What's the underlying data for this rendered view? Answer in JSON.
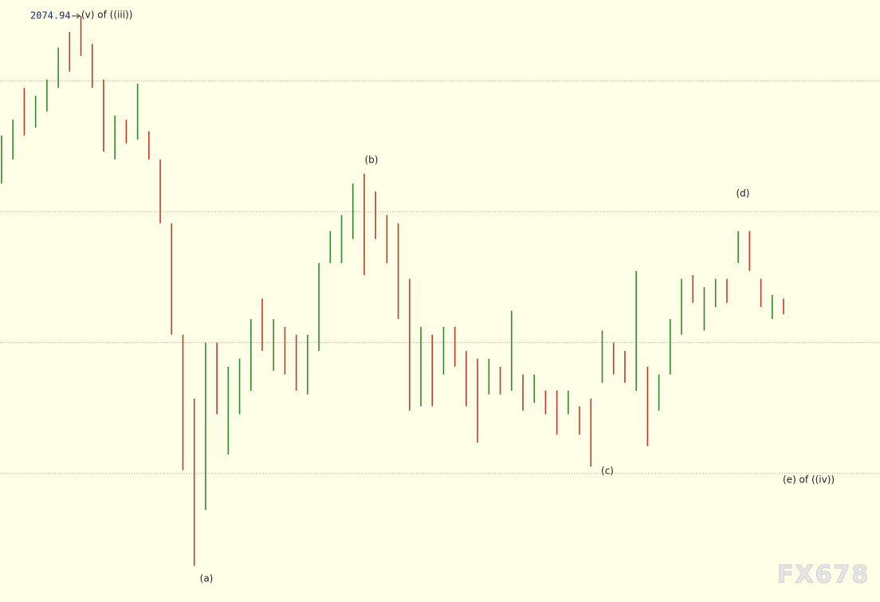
{
  "chart_data": {
    "type": "ohlc-range",
    "ylim": [
      1962.9,
      2078
    ],
    "grid_lines": [
      1987.5,
      2012.5,
      2037.5,
      2062.5
    ],
    "up_color": "#2f8a2f",
    "down_color": "#c0392b",
    "high": [
      2052.1,
      2055.1,
      2061.2,
      2059.7,
      2062.8,
      2068.9,
      2071.9,
      2074.94,
      2069.6,
      2062.8,
      2055.9,
      2055.1,
      2062.0,
      2052.9,
      2047.5,
      2035.3,
      2014.0,
      2001.8,
      2012.5,
      2012.5,
      2007.9,
      2009.4,
      2017.0,
      2020.9,
      2017.0,
      2015.5,
      2014.0,
      2014.0,
      2027.7,
      2033.8,
      2036.9,
      2042.9,
      2044.8,
      2041.4,
      2036.9,
      2035.3,
      2024.7,
      2015.5,
      2014.0,
      2015.5,
      2015.5,
      2010.9,
      2009.4,
      2009.4,
      2007.9,
      2018.6,
      2006.4,
      2006.4,
      2003.3,
      2003.3,
      2003.3,
      2000.3,
      2001.8,
      2014.8,
      2012.5,
      2010.9,
      2026.2,
      2007.9,
      2006.4,
      2017.0,
      2024.7,
      2025.4,
      2023.1,
      2024.7,
      2024.7,
      2033.8,
      2033.8,
      2024.7,
      2021.6,
      2020.9
    ],
    "low": [
      2042.9,
      2047.5,
      2052.1,
      2053.6,
      2056.7,
      2061.2,
      2064.3,
      2067.3,
      2061.2,
      2049.0,
      2047.5,
      2050.6,
      2051.3,
      2047.5,
      2035.3,
      2014.0,
      1988.1,
      1969.8,
      1980.5,
      1998.8,
      1991.1,
      1998.8,
      2003.3,
      2010.9,
      2007.1,
      2006.4,
      2003.3,
      2002.6,
      2010.9,
      2027.7,
      2027.7,
      2032.3,
      2025.4,
      2032.3,
      2027.7,
      2017.0,
      1999.5,
      2000.3,
      2000.3,
      2006.4,
      2007.9,
      2000.3,
      1993.4,
      2002.6,
      2002.6,
      2003.3,
      1999.5,
      2001.0,
      1998.8,
      1994.9,
      1998.8,
      1994.9,
      1988.8,
      2004.8,
      2006.4,
      2004.8,
      2003.3,
      1992.7,
      1999.5,
      2006.4,
      2014.0,
      2020.1,
      2014.8,
      2019.3,
      2020.1,
      2027.7,
      2026.2,
      2019.3,
      2017.0,
      2017.9
    ],
    "rising": [
      true,
      true,
      false,
      true,
      true,
      true,
      false,
      false,
      false,
      false,
      true,
      false,
      true,
      false,
      false,
      false,
      false,
      false,
      true,
      false,
      true,
      true,
      true,
      false,
      true,
      false,
      false,
      true,
      true,
      true,
      true,
      true,
      false,
      false,
      false,
      false,
      false,
      true,
      false,
      true,
      false,
      false,
      false,
      true,
      false,
      true,
      false,
      true,
      false,
      false,
      true,
      false,
      false,
      true,
      false,
      false,
      true,
      false,
      true,
      true,
      true,
      false,
      true,
      true,
      false,
      true,
      false,
      false,
      true,
      false
    ],
    "annotations": {
      "peak_value": "2074.94",
      "peak": "(v) of ((iii))",
      "a": "(a)",
      "b": "(b)",
      "c": "(c)",
      "d": "(d)",
      "e": "(e) of ((iv))"
    },
    "watermark": "FX678"
  }
}
